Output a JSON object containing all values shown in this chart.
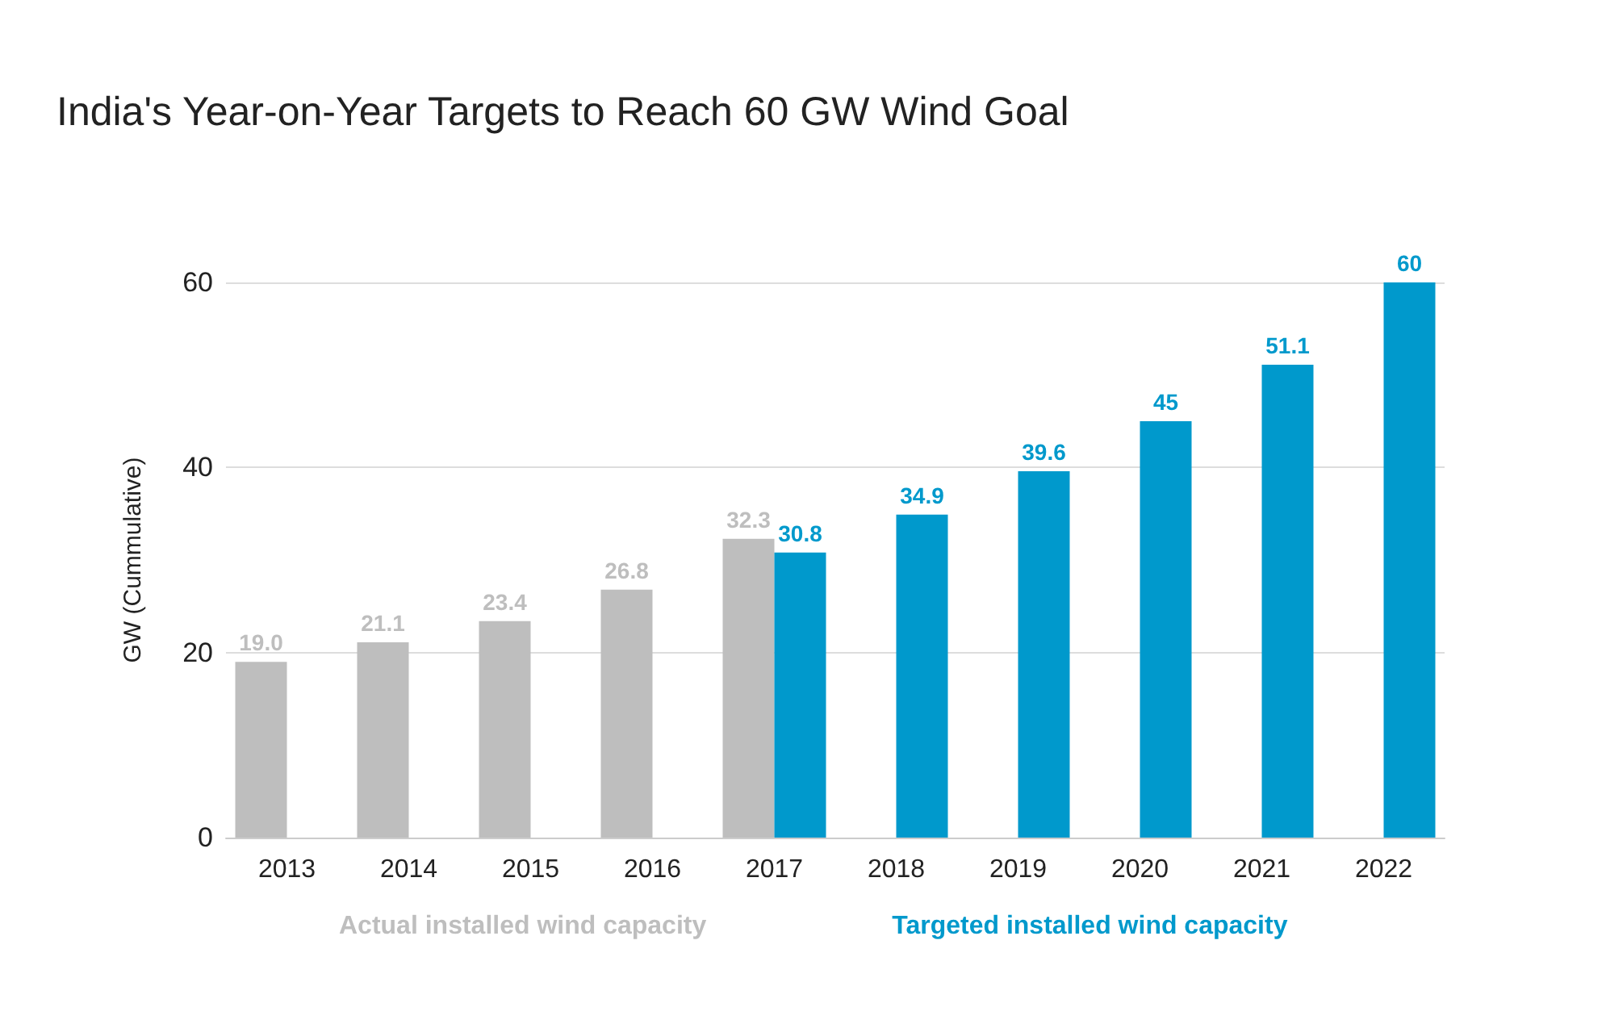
{
  "chart_data": {
    "type": "bar",
    "title": "India's Year-on-Year Targets to Reach 60 GW Wind Goal",
    "ylabel": "GW (Cummulative)",
    "categories": [
      "2013",
      "2014",
      "2015",
      "2016",
      "2017",
      "2018",
      "2019",
      "2020",
      "2021",
      "2022"
    ],
    "series": [
      {
        "name": "Actual installed wind capacity",
        "color": "#bebebe",
        "values": [
          19.0,
          21.1,
          23.4,
          26.8,
          32.3,
          null,
          null,
          null,
          null,
          null
        ],
        "value_labels": [
          "19.0",
          "21.1",
          "23.4",
          "26.8",
          "32.3",
          null,
          null,
          null,
          null,
          null
        ]
      },
      {
        "name": "Targeted installed wind capacity",
        "color": "#0099cc",
        "values": [
          null,
          null,
          null,
          null,
          30.8,
          34.9,
          39.6,
          45,
          51.1,
          60
        ],
        "value_labels": [
          null,
          null,
          null,
          null,
          "30.8",
          "34.9",
          "39.6",
          "45",
          "51.1",
          "60"
        ]
      }
    ],
    "ylim": [
      0,
      60
    ],
    "yticks": [
      0,
      20,
      40,
      60
    ],
    "grid": "y",
    "legend": "bottom"
  }
}
